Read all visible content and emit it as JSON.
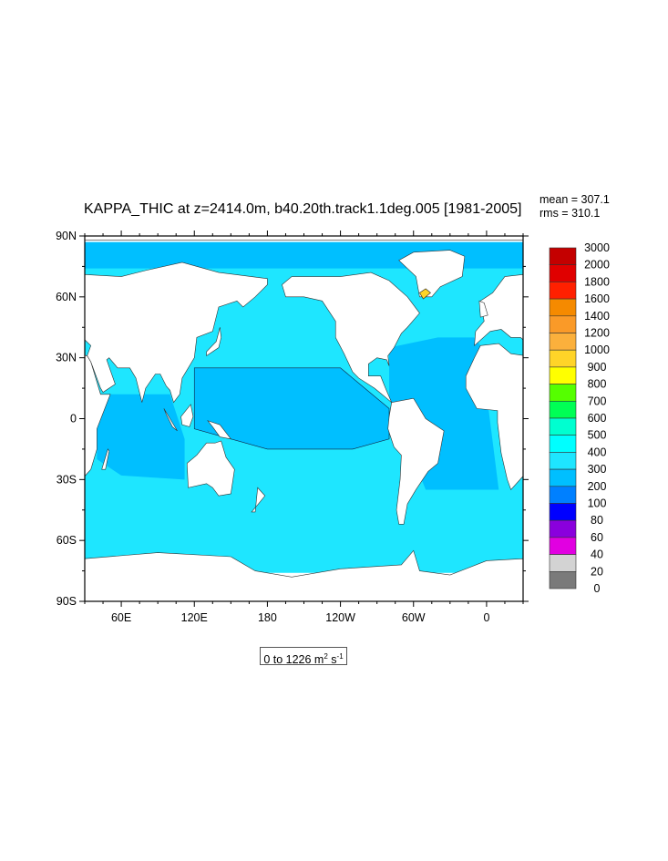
{
  "title": "KAPPA_THIC at z=2414.0m, b40.20th.track1.1deg.005 [1981-2005]",
  "stats": {
    "mean": "mean = 307.1",
    "rms": "rms = 310.1"
  },
  "axes": {
    "lat_labels": [
      "90N",
      "60N",
      "30N",
      "0",
      "30S",
      "60S",
      "90S"
    ],
    "lat_values": [
      90,
      60,
      30,
      0,
      -30,
      -60,
      -90
    ],
    "lon_labels": [
      "60E",
      "120E",
      "180",
      "120W",
      "60W",
      "0"
    ],
    "lon_values": [
      60,
      120,
      180,
      240,
      300,
      360
    ],
    "lon_range": [
      30,
      390
    ],
    "lat_range": [
      -90,
      90
    ]
  },
  "units_box": {
    "range": "0 to 1226 m",
    "sup1": "2",
    "mid": " s",
    "sup2": "-1"
  },
  "colorbar": {
    "labels": [
      "3000",
      "2000",
      "1800",
      "1600",
      "1400",
      "1200",
      "1000",
      "900",
      "800",
      "700",
      "600",
      "500",
      "400",
      "300",
      "200",
      "100",
      "80",
      "60",
      "40",
      "20",
      "0"
    ],
    "colors": [
      "#c40000",
      "#e00000",
      "#ff2000",
      "#f58a00",
      "#fa9a28",
      "#fbb03c",
      "#ffd428",
      "#ffff00",
      "#55ff00",
      "#00ff55",
      "#00ffd0",
      "#00ffff",
      "#1ee6ff",
      "#00bfff",
      "#0080ff",
      "#0000ff",
      "#8a00dd",
      "#e100e1",
      "#d3d3d3",
      "#7a7a7a"
    ]
  },
  "colors": {
    "ocean_main": "#1ee6ff",
    "ocean_tropical": "#00bfff",
    "land": "#ffffff"
  }
}
